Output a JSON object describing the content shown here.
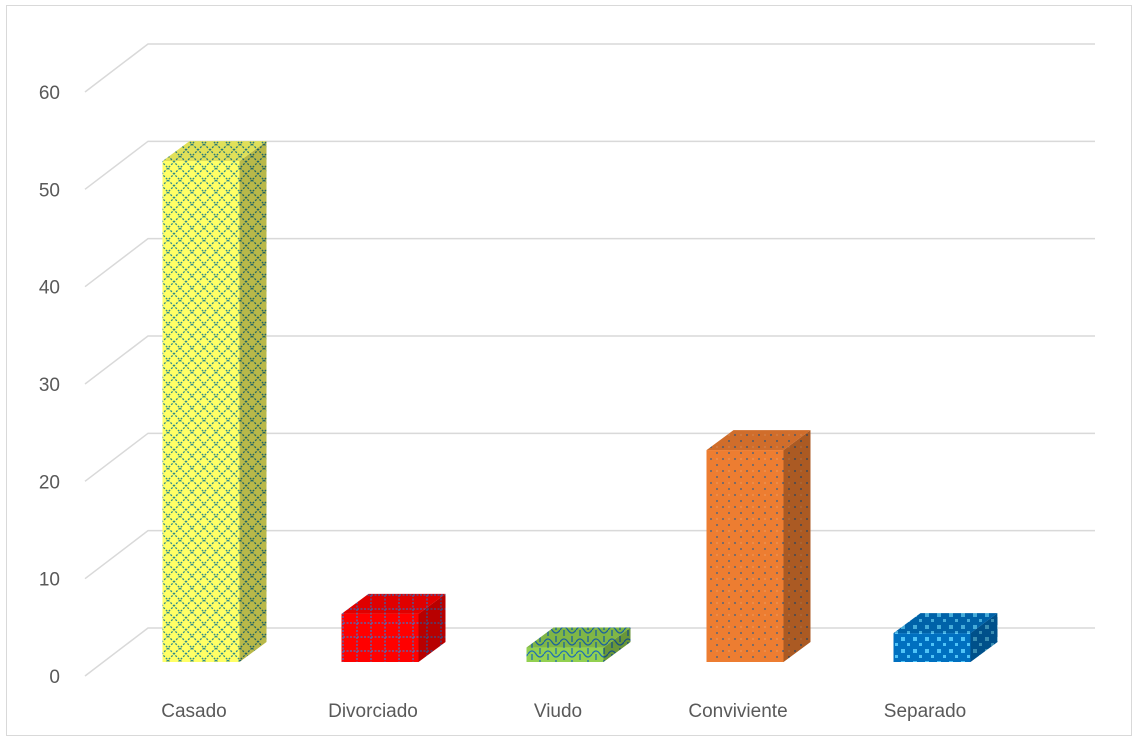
{
  "chart_data": {
    "type": "bar",
    "categories": [
      "Casado",
      "Divorciado",
      "Viudo",
      "Conviviente",
      "Separado"
    ],
    "values": [
      52,
      5,
      1.5,
      22,
      3
    ],
    "ylim": [
      0,
      60
    ],
    "yticks": [
      0,
      10,
      20,
      30,
      40,
      50,
      60
    ],
    "grid": true,
    "colors": [
      "#ffff66",
      "#ff0000",
      "#92d050",
      "#ed7d31",
      "#0070c0"
    ]
  }
}
